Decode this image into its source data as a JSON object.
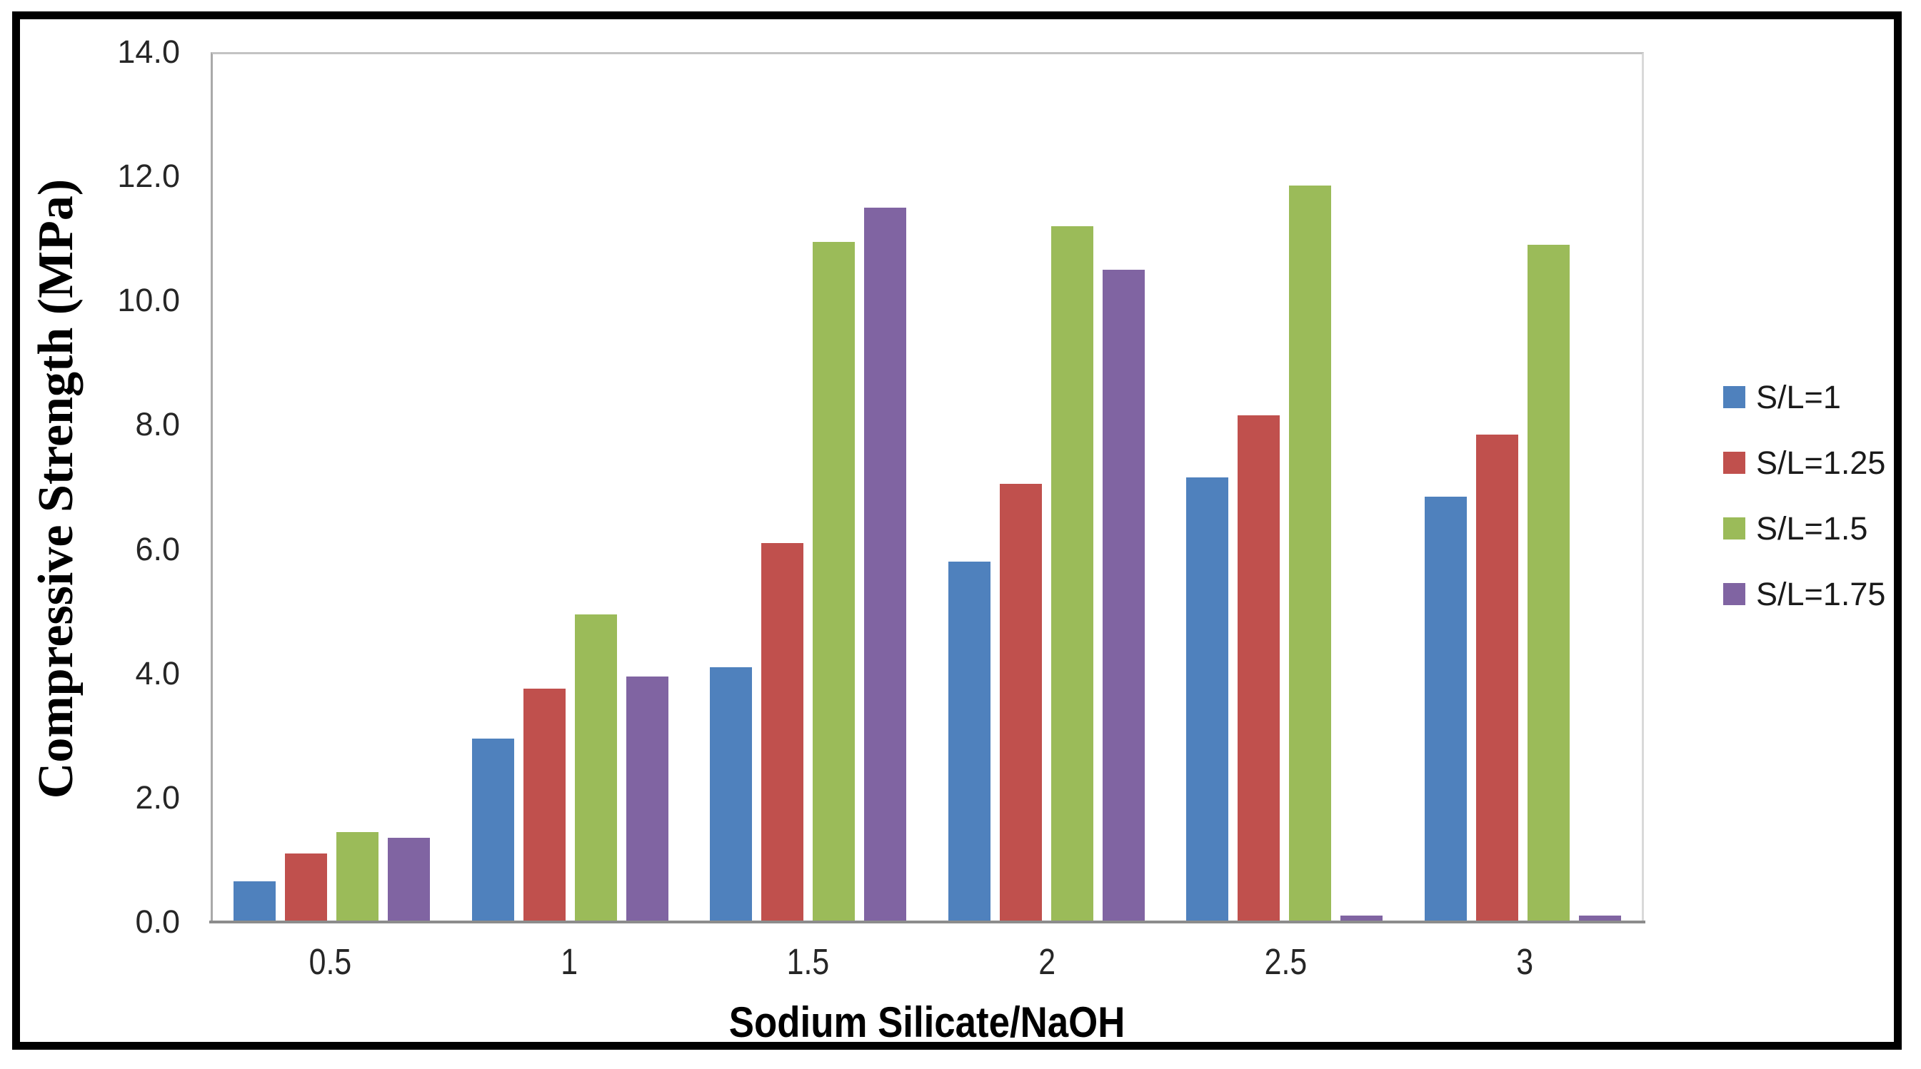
{
  "chart_data": {
    "type": "bar",
    "title": "",
    "xlabel": "Sodium Silicate/NaOH",
    "ylabel": "Compressive Strength (MPa)",
    "categories": [
      "0.5",
      "1",
      "1.5",
      "2",
      "2.5",
      "3"
    ],
    "series": [
      {
        "name": "S/L=1",
        "color": "#4F81BD",
        "values": [
          0.65,
          2.95,
          4.1,
          5.8,
          7.15,
          6.85
        ]
      },
      {
        "name": "S/L=1.25",
        "color": "#C0504D",
        "values": [
          1.1,
          3.75,
          6.1,
          7.05,
          8.15,
          7.85
        ]
      },
      {
        "name": "S/L=1.5",
        "color": "#9BBB59",
        "values": [
          1.45,
          4.95,
          10.95,
          11.2,
          11.85,
          10.9
        ]
      },
      {
        "name": "S/L=1.75",
        "color": "#8064A2",
        "values": [
          1.35,
          3.95,
          11.5,
          10.5,
          0.1,
          0.1
        ]
      }
    ],
    "ylim": [
      0,
      14
    ],
    "y_ticks": [
      "0.0",
      "2.0",
      "4.0",
      "6.0",
      "8.0",
      "10.0",
      "12.0",
      "14.0"
    ],
    "grid": false,
    "legend_position": "right",
    "axis_line_color": "#8c8c8c",
    "plot_border_color": "#c3c3c3"
  }
}
